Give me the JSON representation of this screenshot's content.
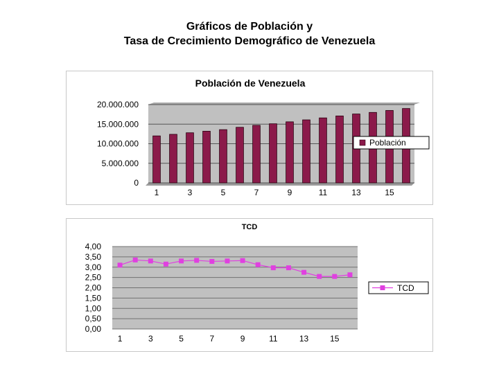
{
  "page": {
    "title_line1": "Gráficos de Población y",
    "title_line2": "Tasa de Crecimiento Demográfico de Venezuela"
  },
  "colors": {
    "plot_bg": "#c0c0c0",
    "bar": "#8b1a4a",
    "line": "#e040e0"
  },
  "chart_data": [
    {
      "type": "bar",
      "title": "Población de Venezuela",
      "categories": [
        "1",
        "2",
        "3",
        "4",
        "5",
        "6",
        "7",
        "8",
        "9",
        "10",
        "11",
        "12",
        "13",
        "14",
        "15",
        "16"
      ],
      "x_tick_labels": [
        "1",
        "3",
        "5",
        "7",
        "9",
        "11",
        "13",
        "15"
      ],
      "y_tick_labels": [
        "0",
        "5.000.000",
        "10.000.000",
        "15.000.000",
        "20.000.000"
      ],
      "ylim": [
        0,
        20000000
      ],
      "series": [
        {
          "name": "Población",
          "values": [
            12000000,
            12400000,
            12800000,
            13200000,
            13600000,
            14200000,
            14700000,
            15100000,
            15600000,
            16100000,
            16600000,
            17100000,
            17600000,
            18000000,
            18500000,
            19000000
          ]
        }
      ],
      "legend": "right",
      "grid": true
    },
    {
      "type": "line",
      "title": "TCD",
      "categories": [
        "1",
        "2",
        "3",
        "4",
        "5",
        "6",
        "7",
        "8",
        "9",
        "10",
        "11",
        "12",
        "13",
        "14",
        "15",
        "16"
      ],
      "x_tick_labels": [
        "1",
        "3",
        "5",
        "7",
        "9",
        "11",
        "13",
        "15"
      ],
      "y_tick_labels": [
        "0,00",
        "0,50",
        "1,00",
        "1,50",
        "2,00",
        "2,50",
        "3,00",
        "3,50",
        "4,00"
      ],
      "ylim": [
        0,
        4
      ],
      "series": [
        {
          "name": "TCD",
          "values": [
            3.1,
            3.35,
            3.3,
            3.15,
            3.3,
            3.33,
            3.28,
            3.3,
            3.32,
            3.12,
            2.97,
            2.97,
            2.75,
            2.55,
            2.55,
            2.63
          ]
        }
      ],
      "legend": "right",
      "grid": true
    }
  ]
}
